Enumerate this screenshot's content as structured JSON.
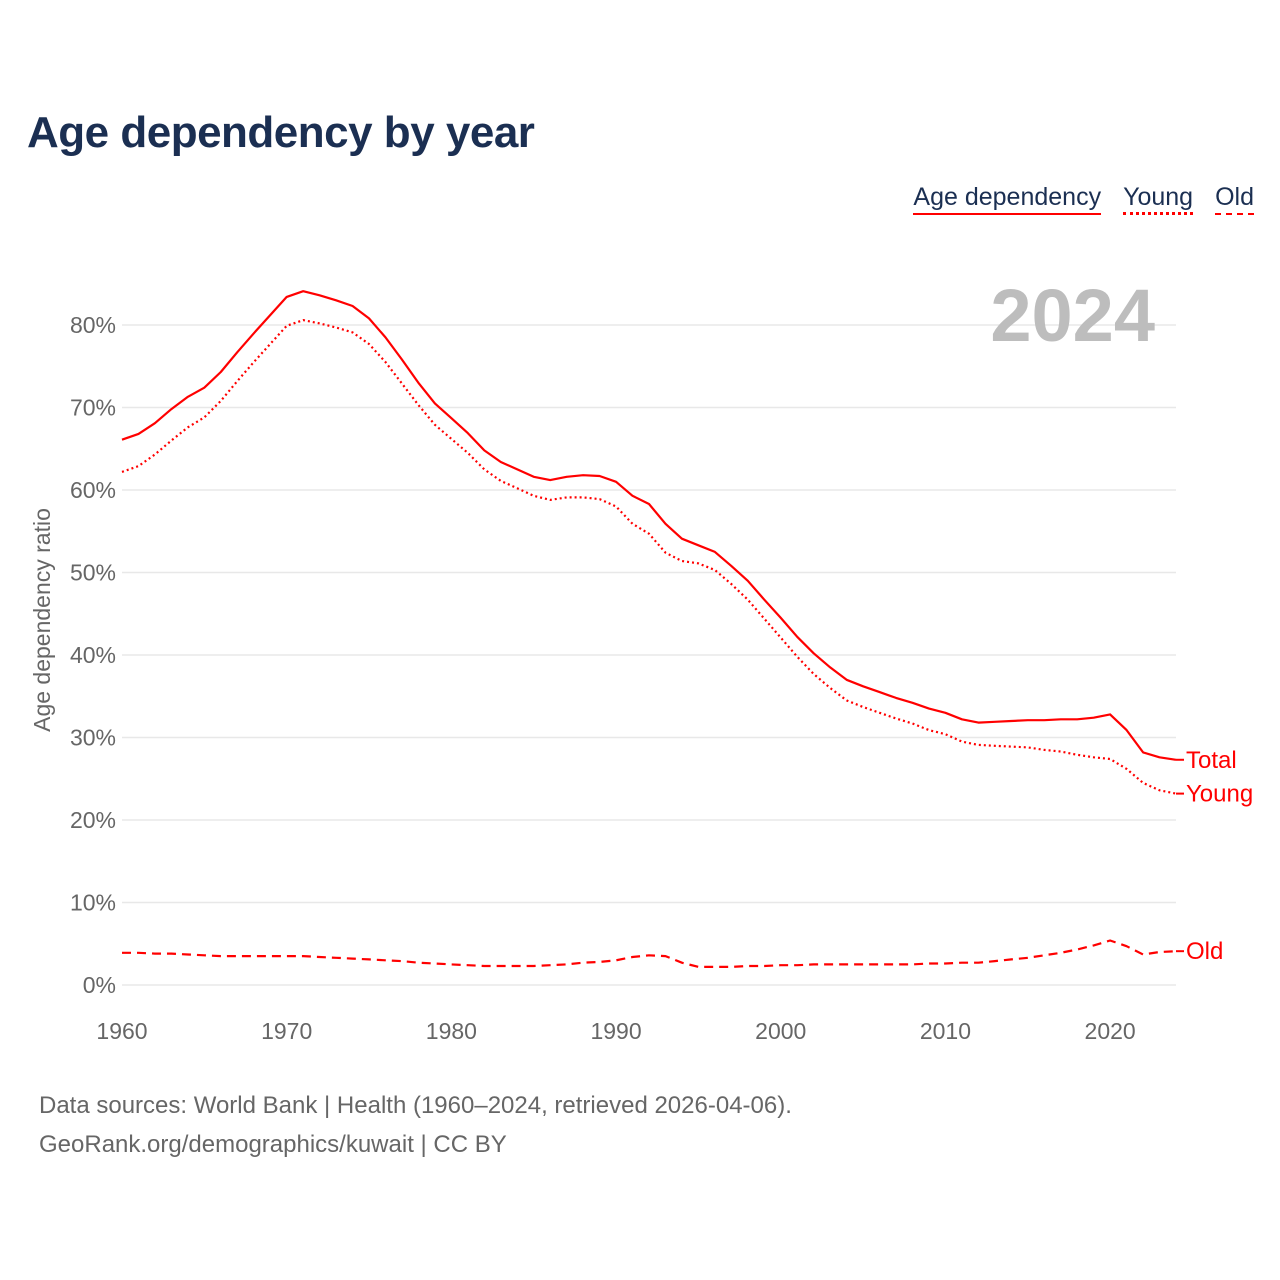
{
  "chart_data": {
    "type": "line",
    "title": "Age dependency by year",
    "xlabel": "",
    "ylabel": "Age dependency ratio",
    "xlim": [
      1960,
      2024
    ],
    "ylim": [
      0,
      85
    ],
    "grid": true,
    "legend_placement": "top-right",
    "x_ticks": [
      "1960",
      "1970",
      "1980",
      "1990",
      "2000",
      "2010",
      "2020"
    ],
    "y_ticks": [
      "0%",
      "10%",
      "20%",
      "30%",
      "40%",
      "50%",
      "60%",
      "70%",
      "80%"
    ],
    "year_watermark": "2024",
    "legend": [
      "Age dependency",
      "Young",
      "Old"
    ],
    "x_start": 1960,
    "series": [
      {
        "name": "Total",
        "end_label": "Total",
        "style": "solid",
        "color": "#ff0000",
        "values": [
          66.1,
          66.8,
          68.1,
          69.8,
          71.3,
          72.4,
          74.3,
          76.7,
          79.0,
          81.2,
          83.4,
          84.1,
          83.6,
          83.0,
          82.3,
          80.8,
          78.5,
          75.8,
          73.0,
          70.5,
          68.7,
          66.9,
          64.8,
          63.4,
          62.5,
          61.6,
          61.2,
          61.6,
          61.8,
          61.7,
          61.0,
          59.3,
          58.3,
          55.9,
          54.1,
          53.3,
          52.5,
          50.8,
          49.0,
          46.7,
          44.5,
          42.2,
          40.2,
          38.5,
          37.0,
          36.2,
          35.5,
          34.8,
          34.2,
          33.5,
          33.0,
          32.2,
          31.8,
          31.9,
          32.0,
          32.1,
          32.1,
          32.2,
          32.2,
          32.4,
          32.8,
          30.9,
          28.2,
          27.6,
          27.3
        ]
      },
      {
        "name": "Young",
        "end_label": "Young",
        "style": "dotted",
        "color": "#ff0000",
        "values": [
          62.2,
          62.9,
          64.3,
          66.0,
          67.6,
          68.8,
          70.8,
          73.2,
          75.5,
          77.7,
          79.9,
          80.6,
          80.2,
          79.7,
          79.1,
          77.7,
          75.5,
          72.9,
          70.3,
          67.9,
          66.2,
          64.5,
          62.5,
          61.1,
          60.2,
          59.3,
          58.8,
          59.1,
          59.1,
          58.9,
          58.0,
          55.9,
          54.7,
          52.4,
          51.4,
          51.1,
          50.3,
          48.6,
          46.7,
          44.4,
          42.1,
          39.8,
          37.7,
          36.0,
          34.5,
          33.7,
          33.0,
          32.3,
          31.7,
          30.9,
          30.4,
          29.5,
          29.1,
          29.0,
          28.9,
          28.8,
          28.5,
          28.3,
          27.9,
          27.6,
          27.4,
          26.2,
          24.5,
          23.6,
          23.2
        ]
      },
      {
        "name": "Old",
        "end_label": "Old",
        "style": "dashed",
        "color": "#ff0000",
        "values": [
          3.9,
          3.9,
          3.8,
          3.8,
          3.7,
          3.6,
          3.5,
          3.5,
          3.5,
          3.5,
          3.5,
          3.5,
          3.4,
          3.3,
          3.2,
          3.1,
          3.0,
          2.9,
          2.7,
          2.6,
          2.5,
          2.4,
          2.3,
          2.3,
          2.3,
          2.3,
          2.4,
          2.5,
          2.7,
          2.8,
          3.0,
          3.4,
          3.6,
          3.5,
          2.7,
          2.2,
          2.2,
          2.2,
          2.3,
          2.3,
          2.4,
          2.4,
          2.5,
          2.5,
          2.5,
          2.5,
          2.5,
          2.5,
          2.5,
          2.6,
          2.6,
          2.7,
          2.7,
          2.9,
          3.1,
          3.3,
          3.6,
          3.9,
          4.3,
          4.8,
          5.4,
          4.7,
          3.7,
          4.0,
          4.1
        ]
      }
    ]
  },
  "footer": {
    "source_line": "Data sources: World Bank | Health (1960–2024, retrieved 2026-04-06).",
    "credit_line": "GeoRank.org/demographics/kuwait | CC BY"
  }
}
